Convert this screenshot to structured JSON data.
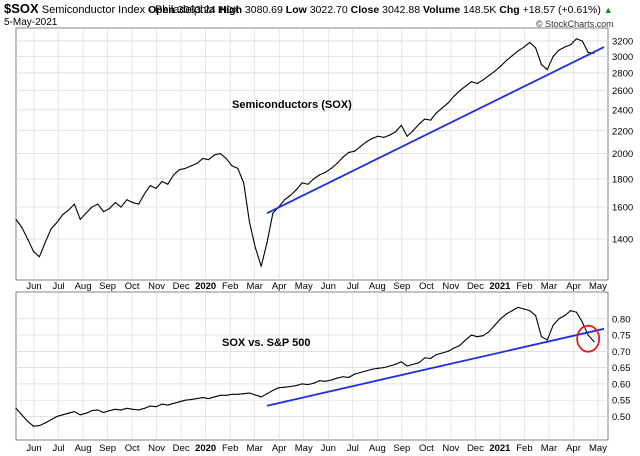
{
  "header": {
    "symbol": "$SOX",
    "name": "Semiconductor Index - Philadelphia",
    "exchange": "INDX",
    "date": "5-May-2021",
    "open_label": "Open",
    "open": "3063.24",
    "high_label": "High",
    "high": "3080.69",
    "low_label": "Low",
    "low": "3022.70",
    "close_label": "Close",
    "close": "3042.88",
    "volume_label": "Volume",
    "volume": "148.5K",
    "chg_label": "Chg",
    "chg": "+18.57 (+0.61%)",
    "chg_direction": "up",
    "watermark": "© StockCharts.com"
  },
  "colors": {
    "price": "#000000",
    "trendline": "#1f2fe0",
    "highlight_circle": "#e02020",
    "grid": "#d8d8d8",
    "chg_arrow": "#1a8a1a"
  },
  "x_axis_labels": [
    "Jun",
    "Jul",
    "Aug",
    "Sep",
    "Oct",
    "Nov",
    "Dec",
    "2020",
    "Feb",
    "Mar",
    "Apr",
    "May",
    "Jun",
    "Jul",
    "Aug",
    "Sep",
    "Oct",
    "Nov",
    "Dec",
    "2021",
    "Feb",
    "Mar",
    "Apr",
    "May"
  ],
  "x_axis_bold": [
    "2020",
    "2021"
  ],
  "chart_data": [
    {
      "type": "line",
      "title": "Semiconductors (SOX)",
      "xlabel": "",
      "ylabel": "",
      "scale": "log",
      "ylim": [
        1200,
        3350
      ],
      "y_ticks": [
        1400,
        1600,
        1800,
        2000,
        2200,
        2400,
        2600,
        2800,
        3000,
        3200
      ],
      "grid": true,
      "series": [
        {
          "values": [
            1520,
            1470,
            1400,
            1330,
            1300,
            1380,
            1460,
            1500,
            1550,
            1580,
            1620,
            1520,
            1560,
            1600,
            1620,
            1570,
            1590,
            1630,
            1600,
            1650,
            1630,
            1620,
            1690,
            1750,
            1730,
            1780,
            1760,
            1830,
            1870,
            1880,
            1900,
            1920,
            1960,
            1950,
            1990,
            2000,
            1960,
            1900,
            1880,
            1770,
            1500,
            1350,
            1250,
            1380,
            1560,
            1600,
            1650,
            1680,
            1720,
            1770,
            1760,
            1800,
            1830,
            1850,
            1880,
            1920,
            1970,
            2010,
            2020,
            2060,
            2100,
            2130,
            2150,
            2140,
            2160,
            2190,
            2250,
            2150,
            2200,
            2260,
            2310,
            2300,
            2370,
            2420,
            2470,
            2540,
            2600,
            2650,
            2700,
            2680,
            2720,
            2770,
            2820,
            2880,
            2950,
            3010,
            3070,
            3120,
            3180,
            3110,
            2900,
            2840,
            3000,
            3080,
            3120,
            3150,
            3230,
            3200,
            3050,
            3040
          ]
        }
      ],
      "annotations": [
        "Semiconductors (SOX)"
      ],
      "trendline": {
        "from": {
          "index": 43,
          "value": 1560
        },
        "to": {
          "index": 99,
          "value": 3055
        }
      }
    },
    {
      "type": "line",
      "title": "SOX vs. S&P 500",
      "xlabel": "",
      "ylabel": "",
      "ylim": [
        0.44,
        0.87
      ],
      "y_ticks": [
        0.5,
        0.55,
        0.6,
        0.65,
        0.7,
        0.75,
        0.8
      ],
      "grid": true,
      "series": [
        {
          "values": [
            0.525,
            0.505,
            0.485,
            0.47,
            0.472,
            0.48,
            0.49,
            0.5,
            0.505,
            0.51,
            0.515,
            0.505,
            0.51,
            0.518,
            0.52,
            0.512,
            0.518,
            0.522,
            0.52,
            0.525,
            0.522,
            0.52,
            0.525,
            0.532,
            0.53,
            0.538,
            0.535,
            0.54,
            0.545,
            0.55,
            0.552,
            0.555,
            0.558,
            0.555,
            0.56,
            0.565,
            0.565,
            0.568,
            0.568,
            0.57,
            0.572,
            0.566,
            0.56,
            0.57,
            0.58,
            0.588,
            0.59,
            0.592,
            0.595,
            0.6,
            0.598,
            0.602,
            0.61,
            0.608,
            0.612,
            0.618,
            0.622,
            0.62,
            0.63,
            0.635,
            0.64,
            0.645,
            0.648,
            0.65,
            0.655,
            0.66,
            0.668,
            0.655,
            0.66,
            0.665,
            0.68,
            0.678,
            0.69,
            0.695,
            0.7,
            0.71,
            0.718,
            0.735,
            0.75,
            0.745,
            0.748,
            0.76,
            0.78,
            0.8,
            0.815,
            0.825,
            0.835,
            0.83,
            0.825,
            0.81,
            0.745,
            0.735,
            0.78,
            0.8,
            0.81,
            0.825,
            0.82,
            0.79,
            0.75,
            0.73
          ]
        }
      ],
      "annotations": [
        "SOX vs. S&P 500"
      ],
      "trendline": {
        "from": {
          "index": 43,
          "value": 0.533
        },
        "to": {
          "index": 99,
          "value": 0.76
        }
      },
      "highlight": {
        "index": 98,
        "value": 0.745
      }
    }
  ]
}
